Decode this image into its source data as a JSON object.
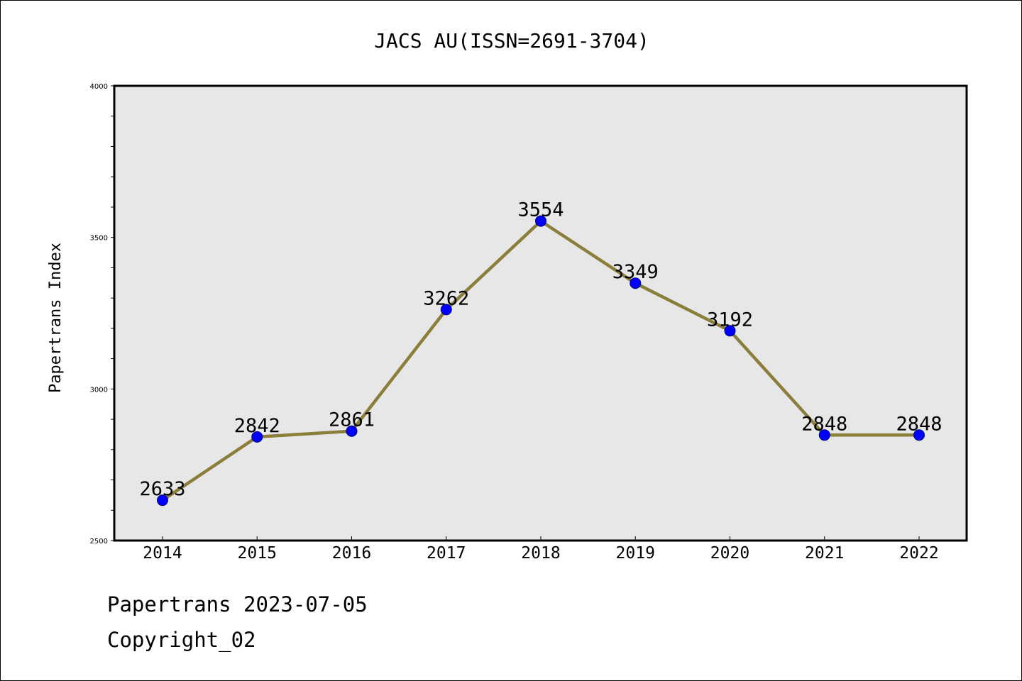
{
  "chart_data": {
    "type": "line",
    "title": "JACS AU(ISSN=2691-3704)",
    "xlabel": "",
    "ylabel": "Papertrans Index",
    "categories": [
      "2014",
      "2015",
      "2016",
      "2017",
      "2018",
      "2019",
      "2020",
      "2021",
      "2022"
    ],
    "series": [
      {
        "values": [
          2633,
          2842,
          2861,
          3262,
          3554,
          3349,
          3192,
          2848,
          2848
        ]
      }
    ],
    "ylim": [
      2500,
      4000
    ],
    "yticks": [
      "2500",
      "3000",
      "3500",
      "4000"
    ],
    "grid": false,
    "legend": "none",
    "colors": {
      "line": "#8B7D3A",
      "marker": "#0000FF",
      "plot_background": "#E7E7E7",
      "axes": "#000000"
    }
  },
  "footer": {
    "date_text": "Papertrans 2023-07-05",
    "copyright_text": "Copyright_02"
  }
}
